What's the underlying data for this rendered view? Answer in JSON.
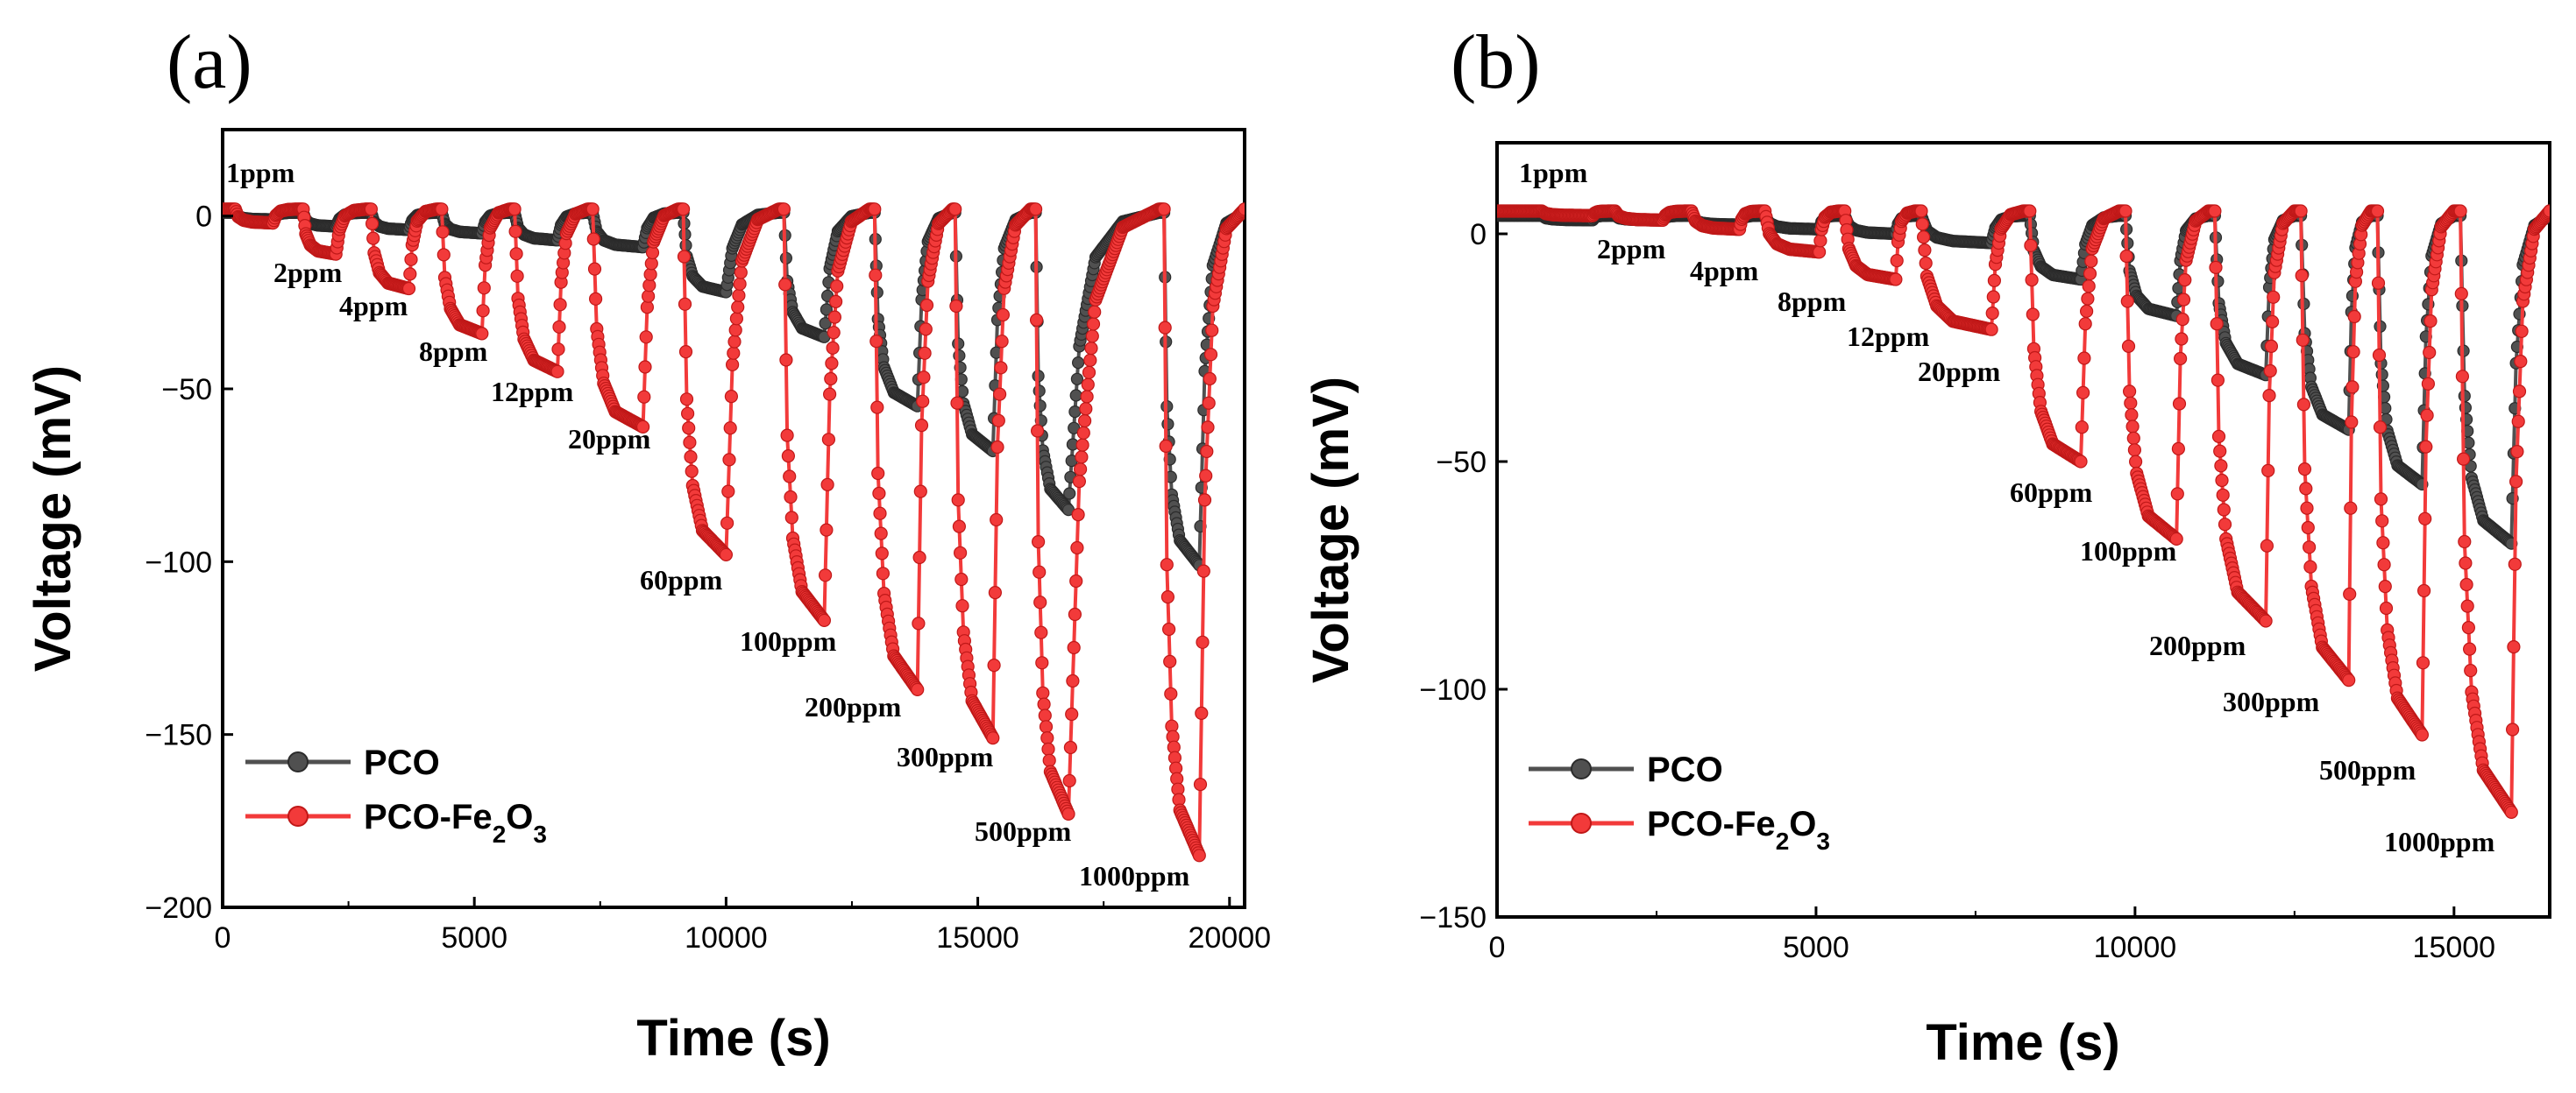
{
  "chart_data": [
    {
      "type": "line",
      "panel_label": "(a)",
      "title": "",
      "xlabel": "Time (s)",
      "ylabel": "Voltage (mV)",
      "xlim": [
        0,
        20300
      ],
      "ylim": [
        -200,
        25
      ],
      "xticks": [
        0,
        5000,
        10000,
        15000,
        20000
      ],
      "xtick_labels": [
        "0",
        "5000",
        "10000",
        "15000",
        "20000"
      ],
      "yticks": [
        0,
        -50,
        -100,
        -150,
        -200
      ],
      "ytick_labels": [
        "0",
        "−50",
        "−100",
        "−150",
        "−200"
      ],
      "legend": {
        "position": "lower-left",
        "entries": [
          "PCO",
          "PCO-Fe2O3"
        ]
      },
      "legend_labels": [
        {
          "base": "PCO",
          "sub": "",
          "tail": ""
        },
        {
          "base": "PCO-Fe",
          "sub": "2",
          "tail": "O",
          "sub2": "3"
        }
      ],
      "pulses": [
        {
          "concentration": "1ppm",
          "start": 250,
          "end": 1000,
          "recover": 1500,
          "PCO": -1,
          "PCO-Fe2O3": -2
        },
        {
          "concentration": "2ppm",
          "start": 1600,
          "end": 2250,
          "recover": 2850,
          "PCO": -3,
          "PCO-Fe2O3": -11
        },
        {
          "concentration": "4ppm",
          "start": 2950,
          "end": 3700,
          "recover": 4250,
          "PCO": -4,
          "PCO-Fe2O3": -21
        },
        {
          "concentration": "8ppm",
          "start": 4350,
          "end": 5150,
          "recover": 5700,
          "PCO": -5,
          "PCO-Fe2O3": -34
        },
        {
          "concentration": "12ppm",
          "start": 5800,
          "end": 6650,
          "recover": 7250,
          "PCO": -7,
          "PCO-Fe2O3": -45
        },
        {
          "concentration": "20ppm",
          "start": 7350,
          "end": 8350,
          "recover": 9050,
          "PCO": -9,
          "PCO-Fe2O3": -61
        },
        {
          "concentration": "60ppm",
          "start": 9150,
          "end": 10000,
          "recover": 11050,
          "PCO": -22,
          "PCO-Fe2O3": -98
        },
        {
          "concentration": "100ppm",
          "start": 11150,
          "end": 11950,
          "recover": 12850,
          "PCO": -35,
          "PCO-Fe2O3": -117
        },
        {
          "concentration": "200ppm",
          "start": 12950,
          "end": 13800,
          "recover": 14500,
          "PCO": -55,
          "PCO-Fe2O3": -137
        },
        {
          "concentration": "300ppm",
          "start": 14550,
          "end": 15300,
          "recover": 16050,
          "PCO": -68,
          "PCO-Fe2O3": -151
        },
        {
          "concentration": "500ppm",
          "start": 16150,
          "end": 16800,
          "recover": 18600,
          "PCO": -85,
          "PCO-Fe2O3": -173
        },
        {
          "concentration": "1000ppm",
          "start": 18700,
          "end": 19400,
          "recover": 20300,
          "PCO": -101,
          "PCO-Fe2O3": -185
        }
      ],
      "annotations": [
        "1ppm",
        "2ppm",
        "4ppm",
        "8ppm",
        "12ppm",
        "20ppm",
        "60ppm",
        "100ppm",
        "200ppm",
        "300ppm",
        "500ppm",
        "1000ppm"
      ]
    },
    {
      "type": "line",
      "panel_label": "(b)",
      "title": "",
      "xlabel": "Time (s)",
      "ylabel": "Voltage (mV)",
      "xlim": [
        0,
        16500
      ],
      "ylim": [
        -150,
        20
      ],
      "xticks": [
        0,
        5000,
        10000,
        15000
      ],
      "xtick_labels": [
        "0",
        "5000",
        "10000",
        "15000"
      ],
      "yticks": [
        0,
        -50,
        -100,
        -150
      ],
      "ytick_labels": [
        "0",
        "−50",
        "−100",
        "−150"
      ],
      "legend": {
        "position": "lower-left",
        "entries": [
          "PCO",
          "PCO-Fe2O3"
        ]
      },
      "legend_labels": [
        {
          "base": "PCO",
          "sub": "",
          "tail": ""
        },
        {
          "base": "PCO-Fe",
          "sub": "2",
          "tail": "O",
          "sub2": "3"
        }
      ],
      "pulses": [
        {
          "concentration": "1ppm",
          "start": 700,
          "end": 1500,
          "recover": 1750,
          "PCO": 3,
          "PCO-Fe2O3": 4
        },
        {
          "concentration": "2ppm",
          "start": 1850,
          "end": 2600,
          "recover": 2950,
          "PCO": 3,
          "PCO-Fe2O3": 3
        },
        {
          "concentration": "4ppm",
          "start": 3050,
          "end": 3800,
          "recover": 4100,
          "PCO": 2,
          "PCO-Fe2O3": 1
        },
        {
          "concentration": "8ppm",
          "start": 4200,
          "end": 5050,
          "recover": 5350,
          "PCO": 1,
          "PCO-Fe2O3": -4
        },
        {
          "concentration": "12ppm",
          "start": 5450,
          "end": 6250,
          "recover": 6550,
          "PCO": 0,
          "PCO-Fe2O3": -10
        },
        {
          "concentration": "20ppm",
          "start": 6650,
          "end": 7750,
          "recover": 8250,
          "PCO": -2,
          "PCO-Fe2O3": -21
        },
        {
          "concentration": "60ppm",
          "start": 8350,
          "end": 9150,
          "recover": 9750,
          "PCO": -10,
          "PCO-Fe2O3": -50
        },
        {
          "concentration": "100ppm",
          "start": 9850,
          "end": 10650,
          "recover": 11150,
          "PCO": -18,
          "PCO-Fe2O3": -67
        },
        {
          "concentration": "200ppm",
          "start": 11250,
          "end": 12050,
          "recover": 12500,
          "PCO": -31,
          "PCO-Fe2O3": -85
        },
        {
          "concentration": "300ppm",
          "start": 12600,
          "end": 13350,
          "recover": 13700,
          "PCO": -43,
          "PCO-Fe2O3": -98
        },
        {
          "concentration": "500ppm",
          "start": 13800,
          "end": 14500,
          "recover": 15000,
          "PCO": -55,
          "PCO-Fe2O3": -110
        },
        {
          "concentration": "1000ppm",
          "start": 15100,
          "end": 15900,
          "recover": 16500,
          "PCO": -68,
          "PCO-Fe2O3": -127
        }
      ],
      "annotations": [
        "1ppm",
        "2ppm",
        "4ppm",
        "8ppm",
        "12ppm",
        "20ppm",
        "60ppm",
        "100ppm",
        "200ppm",
        "300ppm",
        "500ppm",
        "1000ppm"
      ]
    }
  ],
  "colors": {
    "PCO": "#505050",
    "PCO-Fe2O3": "#f23a3a"
  }
}
